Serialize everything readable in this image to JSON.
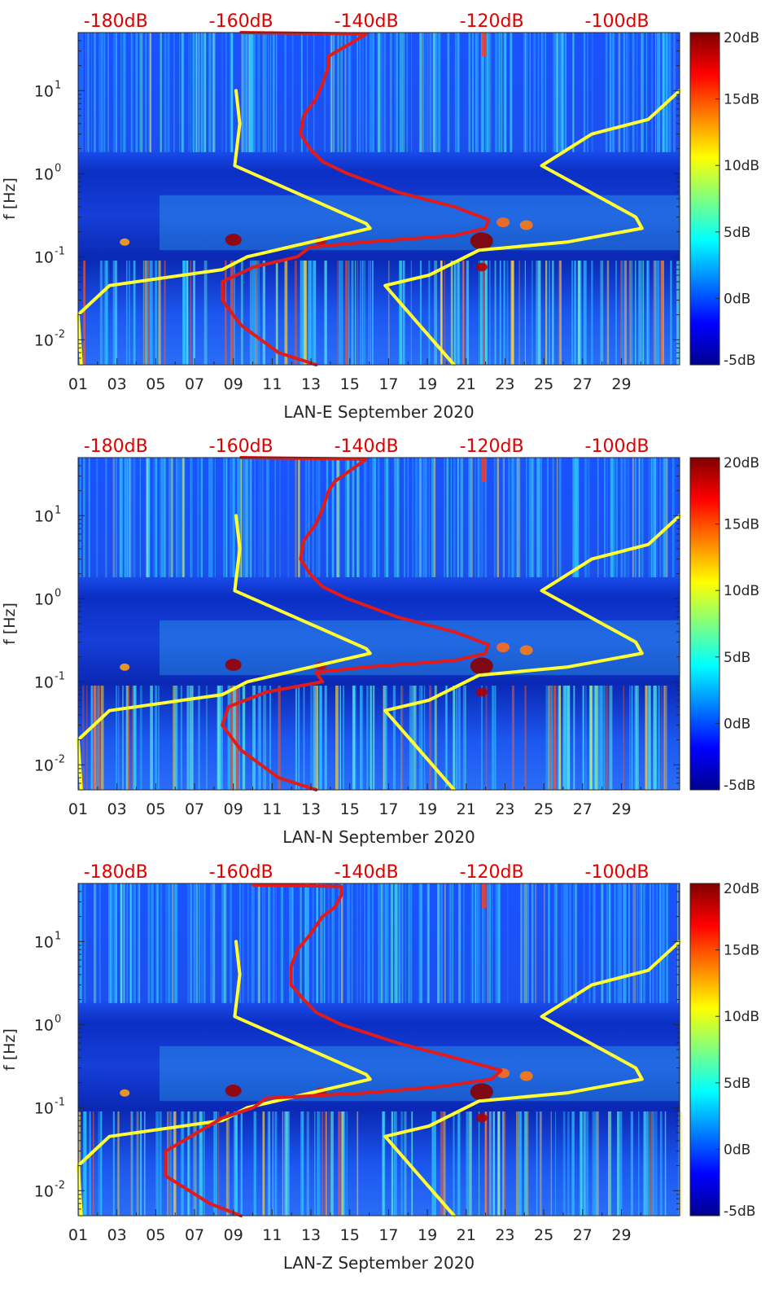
{
  "figure": {
    "colors": {
      "nlnm": "#ffff33",
      "psd": "#e01b1b",
      "db_labels": "#e00000",
      "axis": "#262626"
    },
    "colormap": "jet",
    "colorbar_range_db": [
      -5,
      20
    ]
  },
  "chart_data": [
    {
      "type": "heatmap",
      "title": "",
      "xlabel": "LAN-E September 2020",
      "ylabel": "f [Hz]",
      "xlim_days": [
        1,
        32
      ],
      "ylim_hz": [
        0.005,
        50
      ],
      "yscale": "log",
      "x_ticks": [
        "01",
        "03",
        "05",
        "07",
        "09",
        "11",
        "13",
        "15",
        "17",
        "19",
        "21",
        "23",
        "25",
        "27",
        "29"
      ],
      "y_ticks": [
        {
          "value": 0.01,
          "label": "10",
          "exp": "-2"
        },
        {
          "value": 0.1,
          "label": "10",
          "exp": "-1"
        },
        {
          "value": 1,
          "label": "10",
          "exp": "0"
        },
        {
          "value": 10,
          "label": "10",
          "exp": "1"
        }
      ],
      "top_axis_labels": [
        "-180dB",
        "-160dB",
        "-140dB",
        "-120dB",
        "-100dB"
      ],
      "top_axis_db": [
        -180,
        -160,
        -140,
        -120,
        -100
      ],
      "top_axis_db_range": [
        -186,
        -90
      ],
      "colorbar": {
        "ticks": [
          "20dB",
          "15dB",
          "10dB",
          "5dB",
          "0dB",
          "-5dB"
        ],
        "values": [
          20,
          15,
          10,
          5,
          0,
          -5
        ]
      },
      "series": [
        {
          "name": "noise model (yellow, left)",
          "color": "#ffff33",
          "points_db_hz": [
            [
              -160.8,
              10
            ],
            [
              -160.2,
              4
            ],
            [
              -161,
              1.25
            ],
            [
              -140,
              0.25
            ],
            [
              -139.4,
              0.22
            ],
            [
              -159,
              0.1
            ],
            [
              -163,
              0.07
            ],
            [
              -181,
              0.045
            ],
            [
              -186,
              0.02
            ],
            [
              -185.5,
              0.005
            ]
          ]
        },
        {
          "name": "noise model (yellow, right)",
          "color": "#ffff33",
          "points_db_hz": [
            [
              -90,
              10
            ],
            [
              -95,
              4.5
            ],
            [
              -104,
              3
            ],
            [
              -112,
              1.25
            ],
            [
              -97,
              0.3
            ],
            [
              -96,
              0.22
            ],
            [
              -108,
              0.15
            ],
            [
              -122,
              0.12
            ],
            [
              -130,
              0.06
            ],
            [
              -137,
              0.045
            ],
            [
              -126,
              0.005
            ]
          ]
        },
        {
          "name": "station PSD (red)",
          "color": "#e01b1b",
          "points_db_hz": [
            [
              -160,
              50
            ],
            [
              -140,
              48
            ],
            [
              -146,
              26
            ],
            [
              -146,
              20
            ],
            [
              -147,
              12
            ],
            [
              -148,
              8
            ],
            [
              -150,
              5
            ],
            [
              -150.5,
              3
            ],
            [
              -149,
              2
            ],
            [
              -147,
              1.4
            ],
            [
              -143,
              1
            ],
            [
              -135,
              0.6
            ],
            [
              -126,
              0.4
            ],
            [
              -120.5,
              0.28
            ],
            [
              -121,
              0.22
            ],
            [
              -126,
              0.18
            ],
            [
              -140,
              0.15
            ],
            [
              -149,
              0.13
            ],
            [
              -151,
              0.1
            ],
            [
              -158,
              0.075
            ],
            [
              -163,
              0.05
            ],
            [
              -163,
              0.03
            ],
            [
              -160,
              0.015
            ],
            [
              -154,
              0.007
            ],
            [
              -148,
              0.005
            ]
          ]
        }
      ]
    },
    {
      "type": "heatmap",
      "title": "",
      "xlabel": "LAN-N September 2020",
      "ylabel": "f [Hz]",
      "xlim_days": [
        1,
        32
      ],
      "ylim_hz": [
        0.005,
        50
      ],
      "yscale": "log",
      "x_ticks": [
        "01",
        "03",
        "05",
        "07",
        "09",
        "11",
        "13",
        "15",
        "17",
        "19",
        "21",
        "23",
        "25",
        "27",
        "29"
      ],
      "y_ticks": [
        {
          "value": 0.01,
          "label": "10",
          "exp": "-2"
        },
        {
          "value": 0.1,
          "label": "10",
          "exp": "-1"
        },
        {
          "value": 1,
          "label": "10",
          "exp": "0"
        },
        {
          "value": 10,
          "label": "10",
          "exp": "1"
        }
      ],
      "top_axis_labels": [
        "-180dB",
        "-160dB",
        "-140dB",
        "-120dB",
        "-100dB"
      ],
      "top_axis_db": [
        -180,
        -160,
        -140,
        -120,
        -100
      ],
      "top_axis_db_range": [
        -186,
        -90
      ],
      "colorbar": {
        "ticks": [
          "20dB",
          "15dB",
          "10dB",
          "5dB",
          "0dB",
          "-5dB"
        ],
        "values": [
          20,
          15,
          10,
          5,
          0,
          -5
        ]
      },
      "series": [
        {
          "name": "noise model (yellow, left)",
          "color": "#ffff33",
          "points_db_hz": [
            [
              -160.8,
              10
            ],
            [
              -160.2,
              4
            ],
            [
              -161,
              1.25
            ],
            [
              -140,
              0.25
            ],
            [
              -139.4,
              0.22
            ],
            [
              -159,
              0.1
            ],
            [
              -163,
              0.07
            ],
            [
              -181,
              0.045
            ],
            [
              -186,
              0.02
            ],
            [
              -185.5,
              0.005
            ]
          ]
        },
        {
          "name": "noise model (yellow, right)",
          "color": "#ffff33",
          "points_db_hz": [
            [
              -90,
              10
            ],
            [
              -95,
              4.5
            ],
            [
              -104,
              3
            ],
            [
              -112,
              1.25
            ],
            [
              -97,
              0.3
            ],
            [
              -96,
              0.22
            ],
            [
              -108,
              0.15
            ],
            [
              -122,
              0.12
            ],
            [
              -130,
              0.06
            ],
            [
              -137,
              0.045
            ],
            [
              -126,
              0.005
            ]
          ]
        },
        {
          "name": "station PSD (red)",
          "color": "#e01b1b",
          "points_db_hz": [
            [
              -160,
              50
            ],
            [
              -140,
              48
            ],
            [
              -145,
              26
            ],
            [
              -146,
              20
            ],
            [
              -147,
              12
            ],
            [
              -148,
              8
            ],
            [
              -150,
              5
            ],
            [
              -150.5,
              3
            ],
            [
              -149,
              2
            ],
            [
              -147,
              1.4
            ],
            [
              -143,
              1
            ],
            [
              -135,
              0.6
            ],
            [
              -126,
              0.4
            ],
            [
              -120.5,
              0.28
            ],
            [
              -121,
              0.22
            ],
            [
              -126,
              0.18
            ],
            [
              -140,
              0.15
            ],
            [
              -148,
              0.13
            ],
            [
              -147,
              0.1
            ],
            [
              -156,
              0.075
            ],
            [
              -162,
              0.05
            ],
            [
              -163,
              0.03
            ],
            [
              -160,
              0.015
            ],
            [
              -154,
              0.007
            ],
            [
              -148,
              0.005
            ]
          ]
        }
      ]
    },
    {
      "type": "heatmap",
      "title": "",
      "xlabel": "LAN-Z September 2020",
      "ylabel": "f [Hz]",
      "xlim_days": [
        1,
        32
      ],
      "ylim_hz": [
        0.005,
        50
      ],
      "yscale": "log",
      "x_ticks": [
        "01",
        "03",
        "05",
        "07",
        "09",
        "11",
        "13",
        "15",
        "17",
        "19",
        "21",
        "23",
        "25",
        "27",
        "29"
      ],
      "y_ticks": [
        {
          "value": 0.01,
          "label": "10",
          "exp": "-2"
        },
        {
          "value": 0.1,
          "label": "10",
          "exp": "-1"
        },
        {
          "value": 1,
          "label": "10",
          "exp": "0"
        },
        {
          "value": 10,
          "label": "10",
          "exp": "1"
        }
      ],
      "top_axis_labels": [
        "-180dB",
        "-160dB",
        "-140dB",
        "-120dB",
        "-100dB"
      ],
      "top_axis_db": [
        -180,
        -160,
        -140,
        -120,
        -100
      ],
      "top_axis_db_range": [
        -186,
        -90
      ],
      "colorbar": {
        "ticks": [
          "20dB",
          "15dB",
          "10dB",
          "5dB",
          "0dB",
          "-5dB"
        ],
        "values": [
          20,
          15,
          10,
          5,
          0,
          -5
        ]
      },
      "series": [
        {
          "name": "noise model (yellow, left)",
          "color": "#ffff33",
          "points_db_hz": [
            [
              -160.8,
              10
            ],
            [
              -160.2,
              4
            ],
            [
              -161,
              1.25
            ],
            [
              -140,
              0.25
            ],
            [
              -139.4,
              0.22
            ],
            [
              -159,
              0.1
            ],
            [
              -163,
              0.07
            ],
            [
              -181,
              0.045
            ],
            [
              -186,
              0.02
            ],
            [
              -185.5,
              0.005
            ]
          ]
        },
        {
          "name": "noise model (yellow, right)",
          "color": "#ffff33",
          "points_db_hz": [
            [
              -90,
              10
            ],
            [
              -95,
              4.5
            ],
            [
              -104,
              3
            ],
            [
              -112,
              1.25
            ],
            [
              -97,
              0.3
            ],
            [
              -96,
              0.22
            ],
            [
              -108,
              0.15
            ],
            [
              -122,
              0.12
            ],
            [
              -130,
              0.06
            ],
            [
              -137,
              0.045
            ],
            [
              -126,
              0.005
            ]
          ]
        },
        {
          "name": "station PSD (red)",
          "color": "#e01b1b",
          "points_db_hz": [
            [
              -158,
              48
            ],
            [
              -144,
              46
            ],
            [
              -144,
              36
            ],
            [
              -145,
              26
            ],
            [
              -147,
              20
            ],
            [
              -149,
              12
            ],
            [
              -151,
              8
            ],
            [
              -152,
              5
            ],
            [
              -152,
              3
            ],
            [
              -150,
              2
            ],
            [
              -148,
              1.4
            ],
            [
              -144,
              1
            ],
            [
              -135,
              0.6
            ],
            [
              -126,
              0.4
            ],
            [
              -118.5,
              0.28
            ],
            [
              -120,
              0.22
            ],
            [
              -128,
              0.18
            ],
            [
              -140,
              0.15
            ],
            [
              -156,
              0.13
            ],
            [
              -158,
              0.1
            ],
            [
              -163,
              0.075
            ],
            [
              -167,
              0.05
            ],
            [
              -172,
              0.03
            ],
            [
              -172,
              0.015
            ],
            [
              -165,
              0.007
            ],
            [
              -160,
              0.005
            ]
          ]
        }
      ]
    }
  ]
}
